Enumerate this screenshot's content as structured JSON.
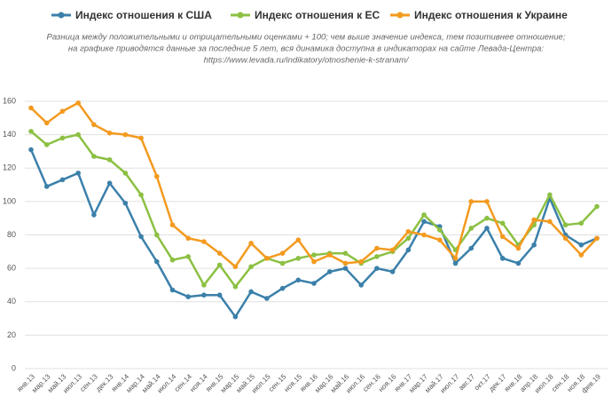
{
  "chart_data": {
    "type": "line",
    "subtitle": [
      "Разница между положительными и отрицательными оценками + 100;  чем выше значение индекса, тем позитивнее отношение;",
      "на графике приводятся данные за последние 5 лет, вся динамика доступна в индикаторах на сайте Левада-Центра:",
      "https://www.levada.ru/indikatory/otnoshenie-k-stranam/"
    ],
    "categories": [
      "янв.13",
      "мар.13",
      "май.13",
      "июл.13",
      "сен.13",
      "дек.13",
      "янв.14",
      "мар.14",
      "май.14",
      "июл.14",
      "сен.14",
      "ноя.14",
      "янв.15",
      "мар.15",
      "май.15",
      "июл.15",
      "сен.15",
      "ноя.15",
      "янв.16",
      "мар.16",
      "май.16",
      "июл.16",
      "сен.16",
      "ноя.16",
      "янв.17",
      "мар.17",
      "май.17",
      "июл.17",
      "авг.17",
      "окт.17",
      "дек.17",
      "янв.18",
      "апр.18",
      "июл.18",
      "сен.18",
      "ноя.18",
      "фев.19"
    ],
    "series": [
      {
        "name": "Индекс отношения к США",
        "color": "#3b80aa",
        "values": [
          131,
          109,
          113,
          117,
          92,
          111,
          99,
          79,
          64,
          47,
          43,
          44,
          44,
          31,
          46,
          42,
          48,
          53,
          51,
          58,
          60,
          50,
          60,
          58,
          71,
          88,
          85,
          63,
          72,
          84,
          66,
          63,
          74,
          102,
          80,
          74,
          78
        ]
      },
      {
        "name": "Индекс отношения к ЕС",
        "color": "#8cc043",
        "values": [
          142,
          134,
          138,
          140,
          127,
          125,
          117,
          104,
          80,
          65,
          67,
          50,
          62,
          49,
          61,
          66,
          63,
          66,
          68,
          69,
          69,
          63,
          67,
          70,
          78,
          92,
          83,
          71,
          84,
          90,
          87,
          74,
          86,
          104,
          86,
          87,
          97
        ]
      },
      {
        "name": "Индекс отношения к Украине",
        "color": "#f39a1f",
        "values": [
          156,
          147,
          154,
          159,
          146,
          141,
          140,
          138,
          115,
          86,
          78,
          76,
          69,
          61,
          75,
          66,
          69,
          77,
          64,
          68,
          63,
          64,
          72,
          71,
          82,
          80,
          77,
          66,
          100,
          100,
          79,
          72,
          89,
          88,
          78,
          68,
          78
        ]
      }
    ],
    "ylim": [
      0,
      160
    ],
    "yticks": [
      0,
      20,
      40,
      60,
      80,
      100,
      120,
      140,
      160
    ],
    "grid": true
  }
}
